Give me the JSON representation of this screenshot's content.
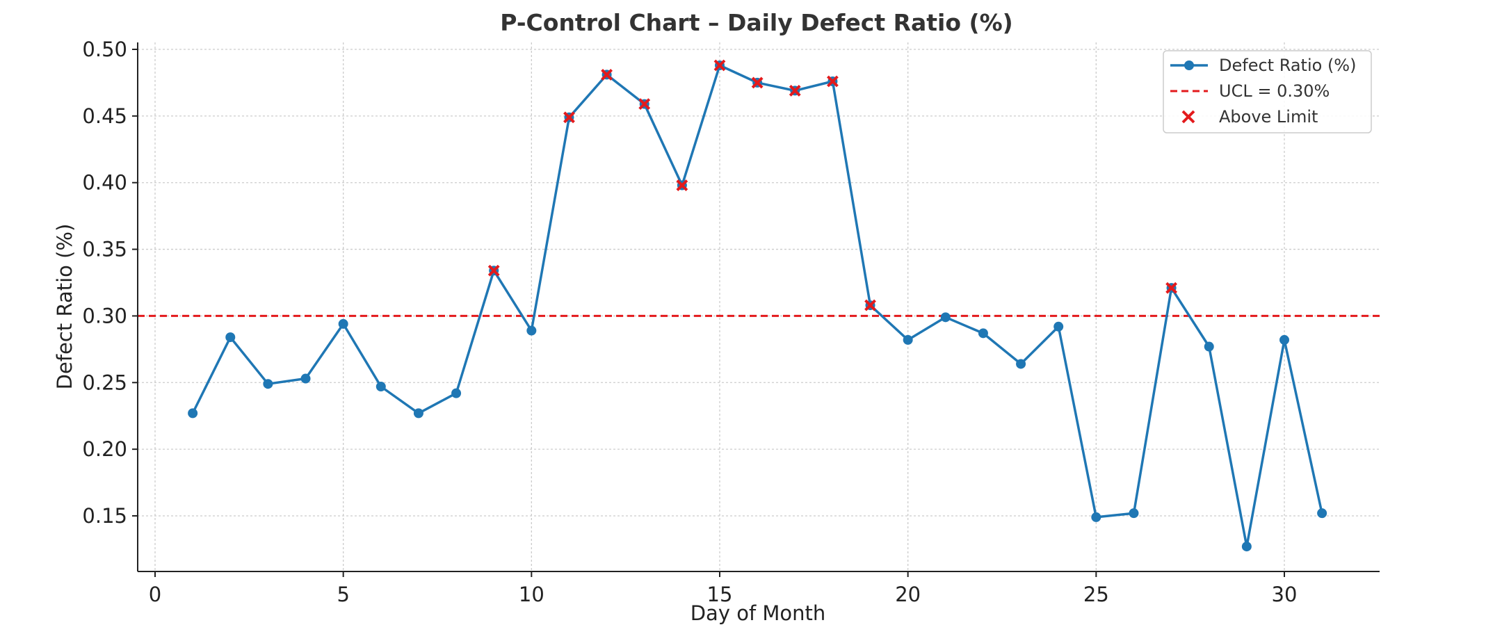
{
  "chart_data": {
    "type": "line",
    "title": "P-Control Chart – Daily Defect Ratio (%)",
    "xlabel": "Day of Month",
    "ylabel": "Defect Ratio (%)",
    "xlim": [
      -0.5,
      32.5
    ],
    "ylim": [
      0.12,
      0.505
    ],
    "xticks": [
      0,
      5,
      10,
      15,
      20,
      25,
      30
    ],
    "yticks": [
      0.15,
      0.2,
      0.25,
      0.3,
      0.35,
      0.4,
      0.45,
      0.5
    ],
    "ytick_labels": [
      "0.15",
      "0.20",
      "0.25",
      "0.30",
      "0.35",
      "0.40",
      "0.45",
      "0.50"
    ],
    "grid": true,
    "legend_position": "top-right",
    "series": [
      {
        "name": "Defect Ratio (%)",
        "color": "#1f77b4",
        "marker": "circle",
        "x": [
          1,
          2,
          3,
          4,
          5,
          6,
          7,
          8,
          9,
          10,
          11,
          12,
          13,
          14,
          15,
          16,
          17,
          18,
          19,
          20,
          21,
          22,
          23,
          24,
          25,
          26,
          27,
          28,
          29,
          30,
          31
        ],
        "values": [
          0.227,
          0.284,
          0.249,
          0.253,
          0.294,
          0.247,
          0.227,
          0.242,
          0.334,
          0.289,
          0.449,
          0.481,
          0.459,
          0.398,
          0.488,
          0.475,
          0.469,
          0.476,
          0.308,
          0.282,
          0.299,
          0.287,
          0.264,
          0.292,
          0.149,
          0.152,
          0.321,
          0.277,
          0.127,
          0.282,
          0.152
        ]
      }
    ],
    "control_limit": {
      "name": "UCL = 0.30%",
      "value": 0.3,
      "color": "#e31a1c",
      "style": "dashed"
    },
    "above_limit": {
      "name": "Above Limit",
      "color": "#e31a1c",
      "marker": "x",
      "x": [
        9,
        11,
        12,
        13,
        14,
        15,
        16,
        17,
        18,
        19,
        27
      ],
      "values": [
        0.334,
        0.449,
        0.481,
        0.459,
        0.398,
        0.488,
        0.475,
        0.469,
        0.476,
        0.308,
        0.321
      ]
    }
  }
}
